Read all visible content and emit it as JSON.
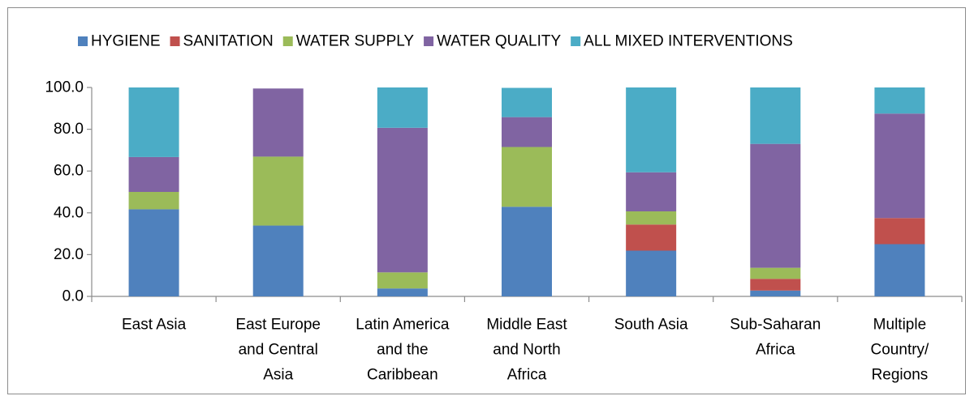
{
  "chart_data": {
    "type": "bar",
    "stacked": true,
    "categories": [
      [
        "East Asia"
      ],
      [
        "East Europe",
        "and Central",
        "Asia"
      ],
      [
        "Latin America",
        "and the",
        "Caribbean"
      ],
      [
        "Middle East",
        "and North",
        "Africa"
      ],
      [
        "South Asia"
      ],
      [
        "Sub-Saharan",
        "Africa"
      ],
      [
        "Multiple",
        "Country/",
        "Regions"
      ]
    ],
    "series": [
      {
        "name": "HYGIENE",
        "color": "#4f81bd",
        "values": [
          41.7,
          33.9,
          3.8,
          42.9,
          21.9,
          2.8,
          25.0
        ]
      },
      {
        "name": "SANITATION",
        "color": "#c0504d",
        "values": [
          0.0,
          0.0,
          0.0,
          0.0,
          12.5,
          5.6,
          12.5
        ]
      },
      {
        "name": "WATER SUPPLY",
        "color": "#9bbb59",
        "values": [
          8.3,
          33.0,
          7.7,
          28.6,
          6.3,
          5.3,
          0.0
        ]
      },
      {
        "name": "WATER QUALITY",
        "color": "#8064a2",
        "values": [
          16.7,
          32.6,
          69.2,
          14.3,
          18.7,
          59.3,
          50.0
        ]
      },
      {
        "name": "ALL MIXED INTERVENTIONS",
        "color": "#4bacc6",
        "values": [
          33.3,
          0.0,
          19.3,
          14.0,
          40.6,
          27.0,
          12.5
        ]
      }
    ],
    "yticks": [
      "0.0",
      "20.0",
      "40.0",
      "60.0",
      "80.0",
      "100.0"
    ],
    "ylim": [
      0,
      100
    ],
    "legend_position": "top",
    "grid": false
  }
}
